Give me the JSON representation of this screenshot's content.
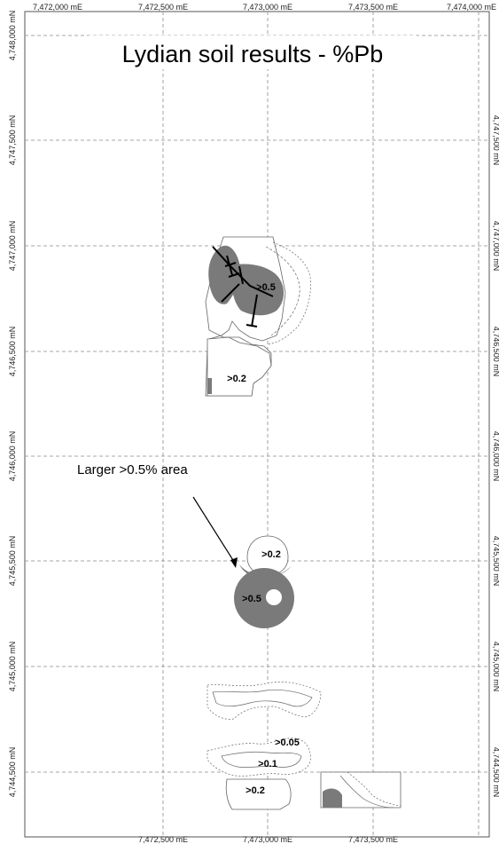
{
  "title": "Lydian soil results - %Pb",
  "annotation": "Larger >0.5% area",
  "colors": {
    "grid": "#888888",
    "frame": "#555555",
    "anomaly_fill": "#7a7a7a",
    "outline": "#555555",
    "drillhole": "#000000"
  },
  "axes": {
    "top_ticks": [
      "7,472,000 mE",
      "7,472,500 mE",
      "7,473,000 mE",
      "7,473,500 mE",
      "7,474,000 mE"
    ],
    "bottom_ticks": [
      "7,472,500 mE",
      "7,473,000 mE",
      "7,473,500 mE"
    ],
    "left_ticks": [
      "4,748,000 mN",
      "4,747,500 mN",
      "4,747,000 mN",
      "4,746,500 mN",
      "4,746,000 mN",
      "4,745,500 mN",
      "4,745,000 mN",
      "4,744,500 mN"
    ],
    "right_ticks": [
      "4,747,500 mN",
      "4,747,000 mN",
      "4,746,500 mN",
      "4,746,000 mN",
      "4,745,500 mN",
      "4,745,000 mN",
      "4,744,500 mN"
    ]
  },
  "contour_labels": {
    "north_05": ">0.5",
    "north_02": ">0.2",
    "mid_02": ">0.2",
    "mid_05": ">0.5",
    "south_005": ">0.05",
    "south_01": ">0.1",
    "south_02": ">0.2"
  },
  "grid_visible": true,
  "grid_style": "dashed"
}
